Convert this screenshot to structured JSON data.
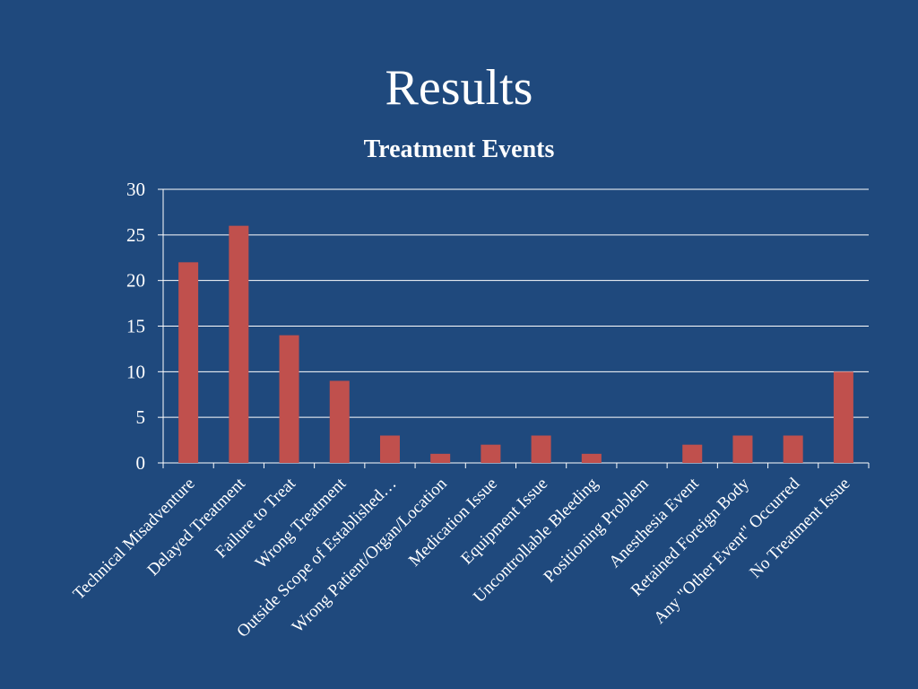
{
  "slide": {
    "title": "Results"
  },
  "chart_data": {
    "type": "bar",
    "title": "Treatment Events",
    "xlabel": "",
    "ylabel": "",
    "ylim": [
      0,
      30
    ],
    "yticks": [
      0,
      5,
      10,
      15,
      20,
      25,
      30
    ],
    "grid": true,
    "legend": "none",
    "categories": [
      "Technical Misadventure",
      "Delayed Treatment",
      "Failure to Treat",
      "Wrong Treatment",
      "Outside Scope of Established…",
      "Wrong Patient/Organ/Location",
      "Medication Issue",
      "Equipment Issue",
      "Uncontrollable Bleeding",
      "Positioning Problem",
      "Anesthesia Event",
      "Retained Foreign Body",
      "Any \"Other Event\" Occurred",
      "No Treatment Issue"
    ],
    "values": [
      22,
      26,
      14,
      9,
      3,
      1,
      2,
      3,
      1,
      0,
      2,
      3,
      3,
      10
    ],
    "colors": {
      "bar": "#c0504d",
      "background": "#1f497d",
      "grid": "#ffffff",
      "text": "#ffffff"
    }
  }
}
